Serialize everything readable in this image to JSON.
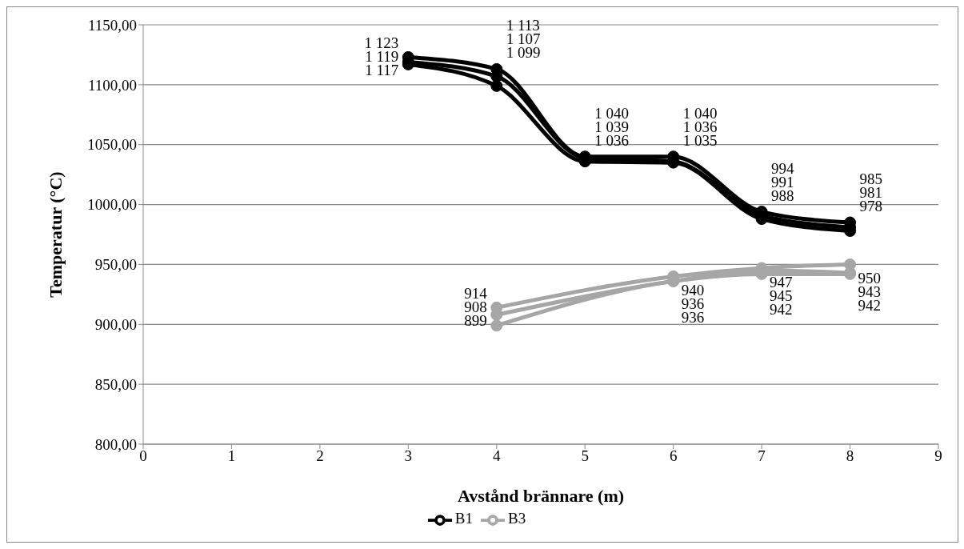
{
  "chart_data": {
    "type": "line",
    "xlabel": "Avstånd brännare (m)",
    "ylabel": "Temperatur (°C)",
    "xlim": [
      0,
      9
    ],
    "xticks": [
      0,
      1,
      2,
      3,
      4,
      5,
      6,
      7,
      8,
      9
    ],
    "ylim": [
      800,
      1150
    ],
    "yticks": [
      {
        "value": 800,
        "label": "800,00"
      },
      {
        "value": 850,
        "label": "850,00"
      },
      {
        "value": 900,
        "label": "900,00"
      },
      {
        "value": 950,
        "label": "950,00"
      },
      {
        "value": 1000,
        "label": "1000,00"
      },
      {
        "value": 1050,
        "label": "1050,00"
      },
      {
        "value": 1100,
        "label": "1100,00"
      },
      {
        "value": 1150,
        "label": "1150,00"
      }
    ],
    "grid": "y",
    "legend": "bottom",
    "marker": "circle",
    "line_style": "solid",
    "series": [
      {
        "name": "B1",
        "color": "#000000",
        "x": [
          3,
          4,
          5,
          6,
          7,
          8
        ],
        "values": [
          1123,
          1113,
          1040,
          1040,
          994,
          985
        ],
        "value_labels": [
          "1 123",
          "1 113",
          "1 040",
          "1 040",
          "994",
          "985"
        ]
      },
      {
        "color": "#000000",
        "x": [
          3,
          4,
          5,
          6,
          7,
          8
        ],
        "values": [
          1119,
          1107,
          1039,
          1036,
          991,
          981
        ],
        "value_labels": [
          "1 119",
          "1 107",
          "1 039",
          "1 036",
          "991",
          "981"
        ]
      },
      {
        "color": "#000000",
        "x": [
          3,
          4,
          5,
          6,
          7,
          8
        ],
        "values": [
          1117,
          1099,
          1036,
          1035,
          988,
          978
        ],
        "value_labels": [
          "1 117",
          "1 099",
          "1 036",
          "1 035",
          "988",
          "978"
        ]
      },
      {
        "name": "B3",
        "color": "#a6a6a6",
        "x": [
          4,
          6,
          7,
          8
        ],
        "values": [
          914,
          940,
          947,
          950
        ],
        "value_labels": [
          "914",
          "940",
          "947",
          "950"
        ]
      },
      {
        "color": "#a6a6a6",
        "x": [
          4,
          6,
          7,
          8
        ],
        "values": [
          908,
          936,
          945,
          943
        ],
        "value_labels": [
          "908",
          "936",
          "945",
          "943"
        ]
      },
      {
        "color": "#a6a6a6",
        "x": [
          4,
          6,
          7,
          8
        ],
        "values": [
          899,
          936,
          942,
          942
        ],
        "value_labels": [
          "899",
          "936",
          "942",
          "942"
        ]
      }
    ]
  }
}
